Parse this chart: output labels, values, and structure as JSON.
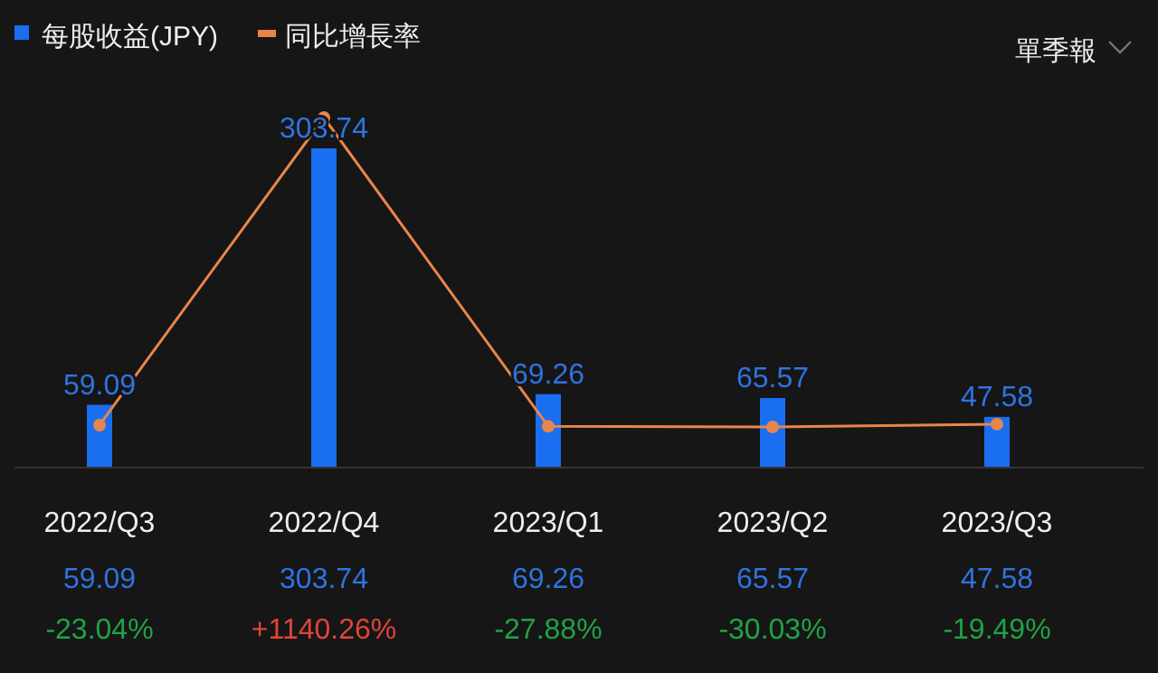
{
  "chart_data": {
    "type": "bar",
    "categories": [
      "2022/Q3",
      "2022/Q4",
      "2023/Q1",
      "2023/Q2",
      "2023/Q3"
    ],
    "series": [
      {
        "name": "每股收益(JPY)",
        "color": "#1a6ef0",
        "values": [
          59.09,
          303.74,
          69.26,
          65.57,
          47.58
        ],
        "value_labels": [
          "59.09",
          "303.74",
          "69.26",
          "65.57",
          "47.58"
        ]
      },
      {
        "name": "同比增長率",
        "type": "line",
        "axis": "y2",
        "color": "#e8864a",
        "marker": "circle",
        "values": [
          -23.04,
          1140.26,
          -27.88,
          -30.03,
          -19.49
        ],
        "value_labels": [
          "-23.04%",
          "+1140.26%",
          "-27.88%",
          "-30.03%",
          "-19.49%"
        ]
      }
    ],
    "legend": "top left",
    "annotations": [
      "單季報"
    ]
  }
}
